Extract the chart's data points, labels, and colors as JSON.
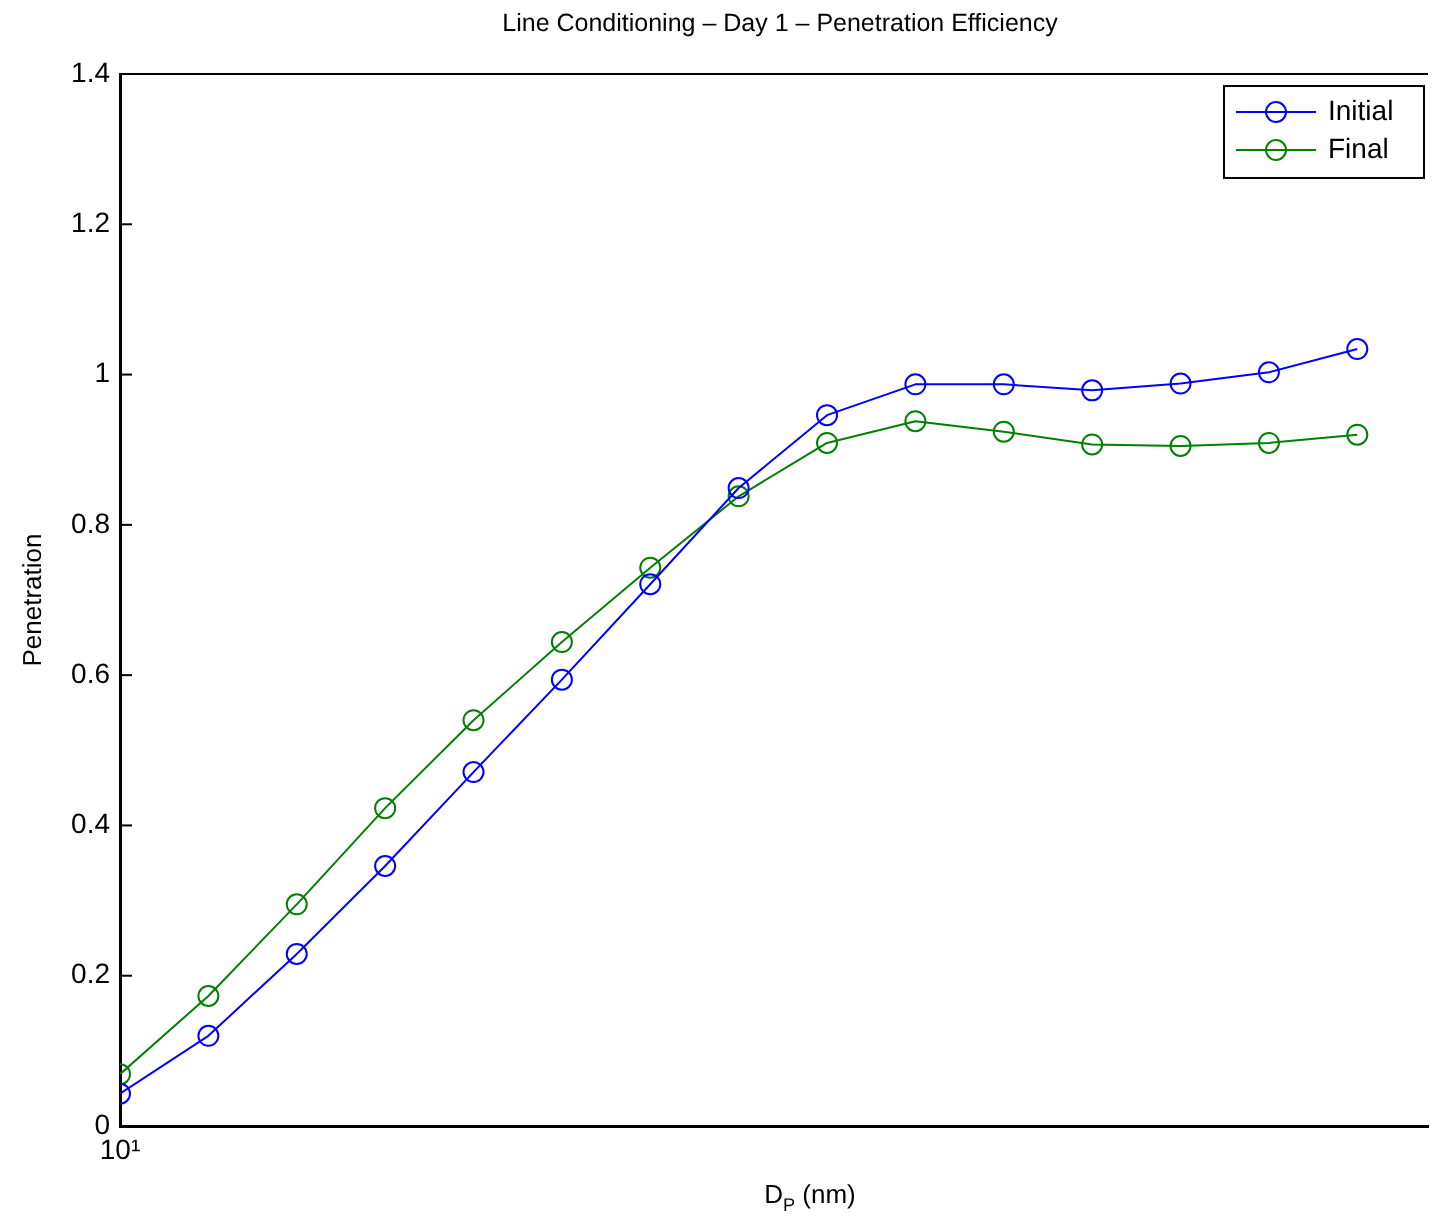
{
  "chart_data": {
    "type": "line",
    "title": "Line Conditioning – Day 1 – Penetration Efficiency",
    "xlabel": "D$_{P}$ (nm)",
    "ylabel": "Penetration",
    "categories": [
      "10¹",
      null,
      null,
      null,
      null,
      null,
      null,
      null,
      null,
      null,
      null,
      null,
      null,
      null,
      null
    ],
    "series": [
      {
        "name": "Initial",
        "color": "#0000ff",
        "values": [
          0.043,
          0.12,
          0.229,
          0.346,
          0.471,
          0.594,
          0.721,
          0.849,
          0.946,
          0.987,
          0.987,
          0.979,
          0.988,
          1.003,
          1.034
        ]
      },
      {
        "name": "Final",
        "color": "#008000",
        "values": [
          0.069,
          0.173,
          0.295,
          0.423,
          0.54,
          0.644,
          0.743,
          0.838,
          0.909,
          0.938,
          0.924,
          0.907,
          0.905,
          0.909,
          0.92
        ]
      }
    ],
    "ylim": [
      0,
      1.4
    ],
    "yticks": [
      0,
      0.2,
      0.4,
      0.6,
      0.8,
      1,
      1.2,
      1.4
    ],
    "legend": "top right",
    "marker": "circle",
    "line_style": "solid"
  }
}
